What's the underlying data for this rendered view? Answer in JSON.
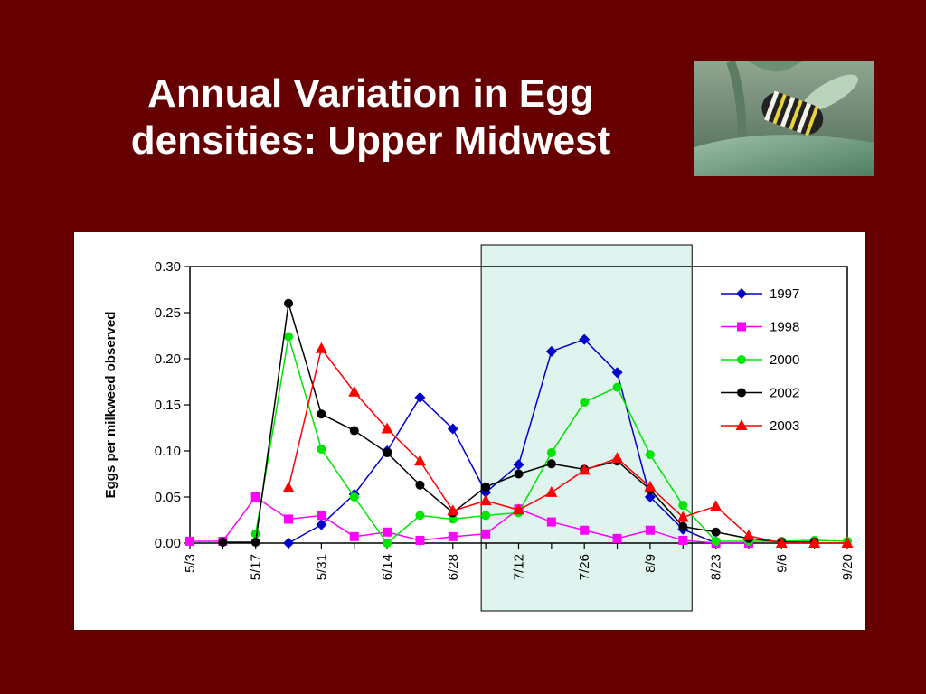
{
  "slide": {
    "title_line1": "Annual Variation in Egg",
    "title_line2": "densities: Upper Midwest",
    "background": "#660000",
    "photo_icon": "monarch-caterpillar-photo"
  },
  "chart_data": {
    "type": "line",
    "x": [
      "5/3",
      "5/10",
      "5/17",
      "5/24",
      "5/31",
      "6/7",
      "6/14",
      "6/21",
      "6/28",
      "7/5",
      "7/12",
      "7/19",
      "7/26",
      "8/2",
      "8/9",
      "8/16",
      "8/23",
      "8/30",
      "9/6",
      "9/13",
      "9/20"
    ],
    "xticks": [
      "5/3",
      "5/17",
      "5/31",
      "6/14",
      "6/28",
      "7/12",
      "7/26",
      "8/9",
      "8/23",
      "9/6",
      "9/20"
    ],
    "ylabel": "Eggs per milkweed observed",
    "xlabel": "",
    "ylim": [
      0,
      0.3
    ],
    "yticks": [
      "0.00",
      "0.05",
      "0.10",
      "0.15",
      "0.20",
      "0.25",
      "0.30"
    ],
    "legend_position": "top-right",
    "highlight": {
      "from": "7/5",
      "to": "8/16",
      "color": "#dff3ef"
    },
    "series": [
      {
        "name": "1997",
        "color": "#0000cc",
        "marker": "diamond",
        "values": [
          null,
          null,
          null,
          0.0,
          0.02,
          0.053,
          0.1,
          0.158,
          0.124,
          0.055,
          0.085,
          0.208,
          0.221,
          0.185,
          0.05,
          0.015,
          0.0,
          0.0,
          null,
          null,
          null
        ]
      },
      {
        "name": "1998",
        "color": "#ff00ff",
        "marker": "square",
        "values": [
          0.002,
          0.002,
          0.05,
          0.026,
          0.03,
          0.007,
          0.012,
          0.003,
          0.007,
          0.01,
          0.037,
          0.023,
          0.014,
          0.005,
          0.014,
          0.003,
          0.0,
          0.0,
          null,
          null,
          null
        ]
      },
      {
        "name": "2000",
        "color": "#00e600",
        "marker": "circle",
        "values": [
          null,
          null,
          0.01,
          0.224,
          0.102,
          0.05,
          0.0,
          0.03,
          0.026,
          0.03,
          0.033,
          0.098,
          0.153,
          0.169,
          0.096,
          0.041,
          0.002,
          0.002,
          0.002,
          0.003,
          0.002
        ]
      },
      {
        "name": "2002",
        "color": "#000000",
        "marker": "circle",
        "values": [
          null,
          0.001,
          0.001,
          0.26,
          0.14,
          0.122,
          0.098,
          0.063,
          0.033,
          0.061,
          0.075,
          0.086,
          0.08,
          0.089,
          0.058,
          0.018,
          0.012,
          0.005,
          0.001,
          0.001,
          null
        ]
      },
      {
        "name": "2003",
        "color": "#ff0000",
        "marker": "triangle",
        "values": [
          null,
          null,
          null,
          0.06,
          0.211,
          0.164,
          0.124,
          0.089,
          0.035,
          0.046,
          0.036,
          0.055,
          0.079,
          0.092,
          0.061,
          0.028,
          0.04,
          0.008,
          0.0,
          0.0,
          0.0
        ]
      }
    ]
  }
}
